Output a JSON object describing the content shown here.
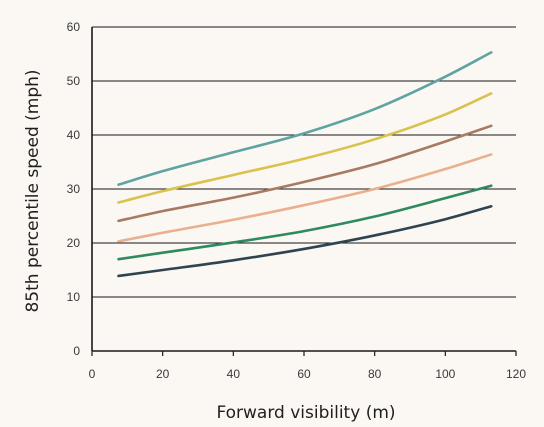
{
  "chart_data": {
    "type": "line",
    "title": "",
    "xlabel": "Forward visibility (m)",
    "ylabel": "85th percentile speed (mph)",
    "xlim": [
      0,
      120
    ],
    "ylim": [
      0,
      60
    ],
    "x_ticks": [
      0,
      20,
      40,
      60,
      80,
      100,
      120
    ],
    "y_ticks": [
      0,
      10,
      20,
      30,
      40,
      50,
      60
    ],
    "grid": "horizontal",
    "legend": "none",
    "x": [
      7.5,
      20,
      40,
      60,
      80,
      100,
      113
    ],
    "series": [
      {
        "color": "#5fa3a3",
        "values": [
          30.8,
          33.3,
          36.8,
          40.3,
          44.8,
          50.8,
          55.3
        ]
      },
      {
        "color": "#d9c24d",
        "values": [
          27.5,
          29.6,
          32.6,
          35.6,
          39.2,
          43.8,
          47.7
        ]
      },
      {
        "color": "#a87a62",
        "values": [
          24.1,
          25.9,
          28.4,
          31.3,
          34.6,
          38.8,
          41.7
        ]
      },
      {
        "color": "#eab08e",
        "values": [
          20.3,
          21.9,
          24.3,
          27.0,
          30.0,
          33.7,
          36.4
        ]
      },
      {
        "color": "#2f8a5e",
        "values": [
          17.0,
          18.2,
          20.1,
          22.2,
          24.9,
          28.3,
          30.6
        ]
      },
      {
        "color": "#2e4450",
        "values": [
          13.9,
          15.0,
          16.8,
          18.9,
          21.4,
          24.4,
          26.8
        ]
      }
    ]
  }
}
